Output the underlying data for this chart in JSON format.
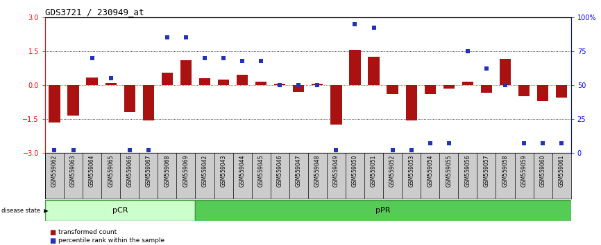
{
  "title": "GDS3721 / 230949_at",
  "samples": [
    "GSM559062",
    "GSM559063",
    "GSM559064",
    "GSM559065",
    "GSM559066",
    "GSM559067",
    "GSM559068",
    "GSM559069",
    "GSM559042",
    "GSM559043",
    "GSM559044",
    "GSM559045",
    "GSM559046",
    "GSM559047",
    "GSM559048",
    "GSM559049",
    "GSM559050",
    "GSM559051",
    "GSM559052",
    "GSM559053",
    "GSM559054",
    "GSM559055",
    "GSM559056",
    "GSM559057",
    "GSM559058",
    "GSM559059",
    "GSM559060",
    "GSM559061"
  ],
  "bar_values": [
    -1.65,
    -1.35,
    0.35,
    0.1,
    -1.2,
    -1.55,
    0.55,
    1.1,
    0.3,
    0.25,
    0.45,
    0.15,
    0.05,
    -0.3,
    0.05,
    -1.75,
    1.55,
    1.25,
    -0.4,
    -1.55,
    -0.4,
    -0.15,
    0.15,
    -0.35,
    1.15,
    -0.5,
    -0.7,
    -0.55
  ],
  "percentile_values": [
    2,
    2,
    70,
    55,
    2,
    2,
    85,
    85,
    70,
    70,
    68,
    68,
    50,
    50,
    50,
    2,
    95,
    92,
    2,
    2,
    7,
    7,
    75,
    62,
    50,
    7,
    7,
    7
  ],
  "pCR_count": 8,
  "pPR_count": 20,
  "ylim": [
    -3,
    3
  ],
  "yticks_left": [
    -3,
    -1.5,
    0,
    1.5,
    3
  ],
  "yticks_right": [
    0,
    25,
    50,
    75,
    100
  ],
  "bar_color": "#aa1111",
  "square_color": "#2233bb",
  "pCR_color": "#ccffcc",
  "pPR_color": "#55cc55",
  "label_bg_color": "#cccccc",
  "background_color": "#ffffff"
}
